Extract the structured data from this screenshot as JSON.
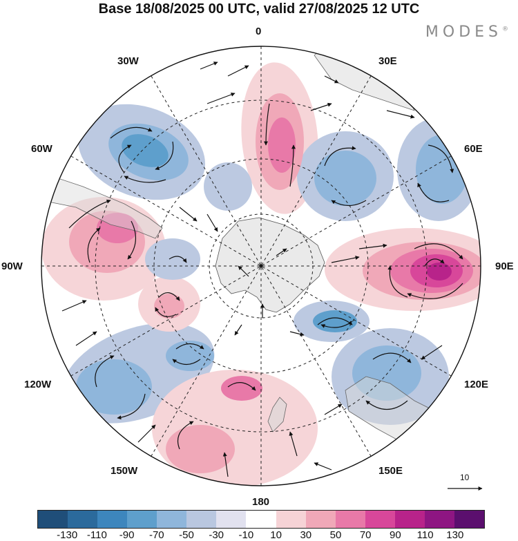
{
  "title": "Base 18/08/2025 00 UTC, valid 27/08/2025 12 UTC",
  "brand": {
    "name": "MODES",
    "mark": "®"
  },
  "map_labels": {
    "north": "0",
    "south": "180",
    "w30": "30W",
    "e30": "30E",
    "w60": "60W",
    "e60": "60E",
    "w90": "90W",
    "e90": "90E",
    "w120": "120W",
    "e120": "120E",
    "w150": "150W",
    "e150": "150E"
  },
  "reference_vector": {
    "label": "10"
  },
  "colorbar": {
    "colors": [
      "#1f4e79",
      "#2b6a9c",
      "#3d86bd",
      "#5e9fcc",
      "#8fb6db",
      "#b9c7e0",
      "#e1e1ef",
      "#ffffff",
      "#f6d3d6",
      "#f0a8b8",
      "#e879a8",
      "#d8479a",
      "#b8238a",
      "#8e1682",
      "#5b0f6e"
    ],
    "ticks": [
      "-130",
      "-110",
      "-90",
      "-70",
      "-50",
      "-30",
      "-10",
      "10",
      "30",
      "50",
      "70",
      "90",
      "110",
      "130"
    ]
  }
}
